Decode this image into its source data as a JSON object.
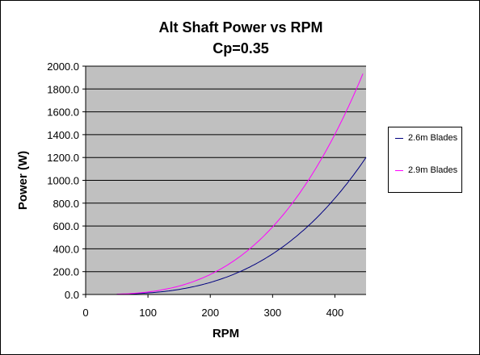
{
  "chart_data": {
    "type": "line",
    "title": "Alt Shaft Power vs RPM",
    "subtitle": "Cp=0.35",
    "xlabel": "RPM",
    "ylabel": "Power (W)",
    "xlim": [
      0,
      450
    ],
    "ylim": [
      0,
      2000
    ],
    "x_ticks": [
      "0",
      "100",
      "200",
      "300",
      "400"
    ],
    "y_ticks": [
      "0.0",
      "200.0",
      "400.0",
      "600.0",
      "800.0",
      "1000.0",
      "1200.0",
      "1400.0",
      "1600.0",
      "1800.0",
      "2000.0"
    ],
    "grid": true,
    "legend_position": "right",
    "plot_background": "#c0c0c0",
    "series": [
      {
        "name": "2.6m Blades",
        "color": "#000080",
        "x": [
          50,
          100,
          150,
          200,
          250,
          300,
          350,
          400,
          450
        ],
        "y": [
          1.6,
          13.2,
          44.5,
          105.4,
          205.9,
          355.8,
          564.9,
          843.3,
          1200.7
        ]
      },
      {
        "name": "2.9m Blades",
        "color": "#ff00ff",
        "x": [
          50,
          100,
          150,
          200,
          250,
          300,
          350,
          400,
          445
        ],
        "y": [
          2.7,
          21.9,
          74.0,
          175.4,
          342.5,
          591.9,
          940.0,
          1403.1,
          1934.0
        ]
      }
    ]
  }
}
